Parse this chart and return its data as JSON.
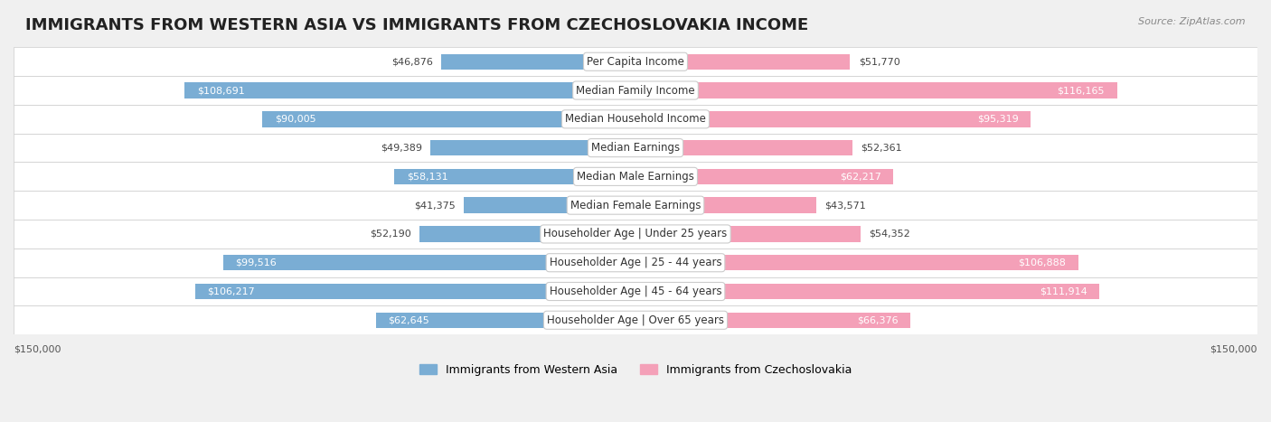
{
  "title": "IMMIGRANTS FROM WESTERN ASIA VS IMMIGRANTS FROM CZECHOSLOVAKIA INCOME",
  "source": "Source: ZipAtlas.com",
  "categories": [
    "Per Capita Income",
    "Median Family Income",
    "Median Household Income",
    "Median Earnings",
    "Median Male Earnings",
    "Median Female Earnings",
    "Householder Age | Under 25 years",
    "Householder Age | 25 - 44 years",
    "Householder Age | 45 - 64 years",
    "Householder Age | Over 65 years"
  ],
  "western_asia": [
    46876,
    108691,
    90005,
    49389,
    58131,
    41375,
    52190,
    99516,
    106217,
    62645
  ],
  "czechoslovakia": [
    51770,
    116165,
    95319,
    52361,
    62217,
    43571,
    54352,
    106888,
    111914,
    66376
  ],
  "western_asia_color": "#7aadd4",
  "czechoslovakia_color": "#f4a0b8",
  "western_asia_label": "Immigrants from Western Asia",
  "czechoslovakia_label": "Immigrants from Czechoslovakia",
  "max_value": 150000,
  "background_color": "#f0f0f0",
  "row_bg_color": "#ffffff",
  "label_box_color": "#ffffff",
  "axis_label": "$150,000",
  "title_fontsize": 13,
  "label_fontsize": 8.5,
  "value_fontsize": 8,
  "legend_fontsize": 9
}
